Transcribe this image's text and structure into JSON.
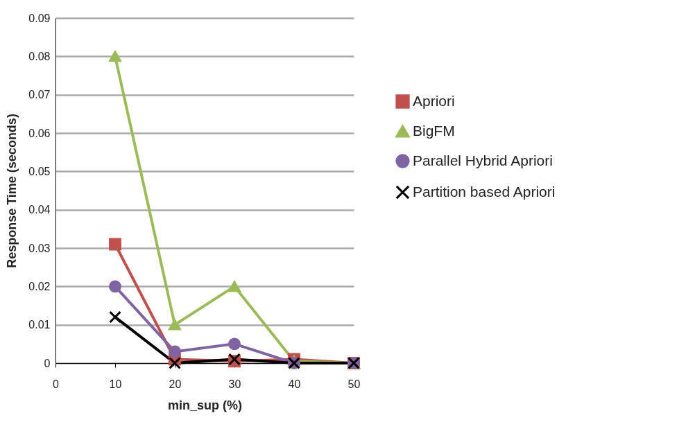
{
  "chart_data": {
    "type": "line",
    "xlabel": "min_sup (%)",
    "ylabel": "Response Time  (seconds)",
    "x": [
      10,
      20,
      30,
      40,
      50
    ],
    "series": [
      {
        "name": "Apriori",
        "color": "#c0504d",
        "marker": "square",
        "values": [
          0.031,
          0.001,
          0.0005,
          0.001,
          0
        ]
      },
      {
        "name": "BigFM",
        "color": "#9bbb59",
        "marker": "triangle",
        "values": [
          0.08,
          0.01,
          0.02,
          0.0005,
          0
        ]
      },
      {
        "name": "Parallel Hybrid Apriori",
        "color": "#8064a2",
        "marker": "circle",
        "values": [
          0.02,
          0.003,
          0.005,
          0,
          0
        ]
      },
      {
        "name": "Partition based Apriori",
        "color": "#000000",
        "marker": "cross",
        "values": [
          0.012,
          0,
          0.001,
          0,
          0
        ]
      }
    ],
    "xlim": [
      0,
      50
    ],
    "xticks": [
      0,
      10,
      20,
      30,
      40,
      50
    ],
    "ylim": [
      0,
      0.09
    ],
    "yticks": [
      0,
      0.01,
      0.02,
      0.03,
      0.04,
      0.05,
      0.06,
      0.07,
      0.08,
      0.09
    ],
    "grid": "y",
    "legend": "right"
  }
}
